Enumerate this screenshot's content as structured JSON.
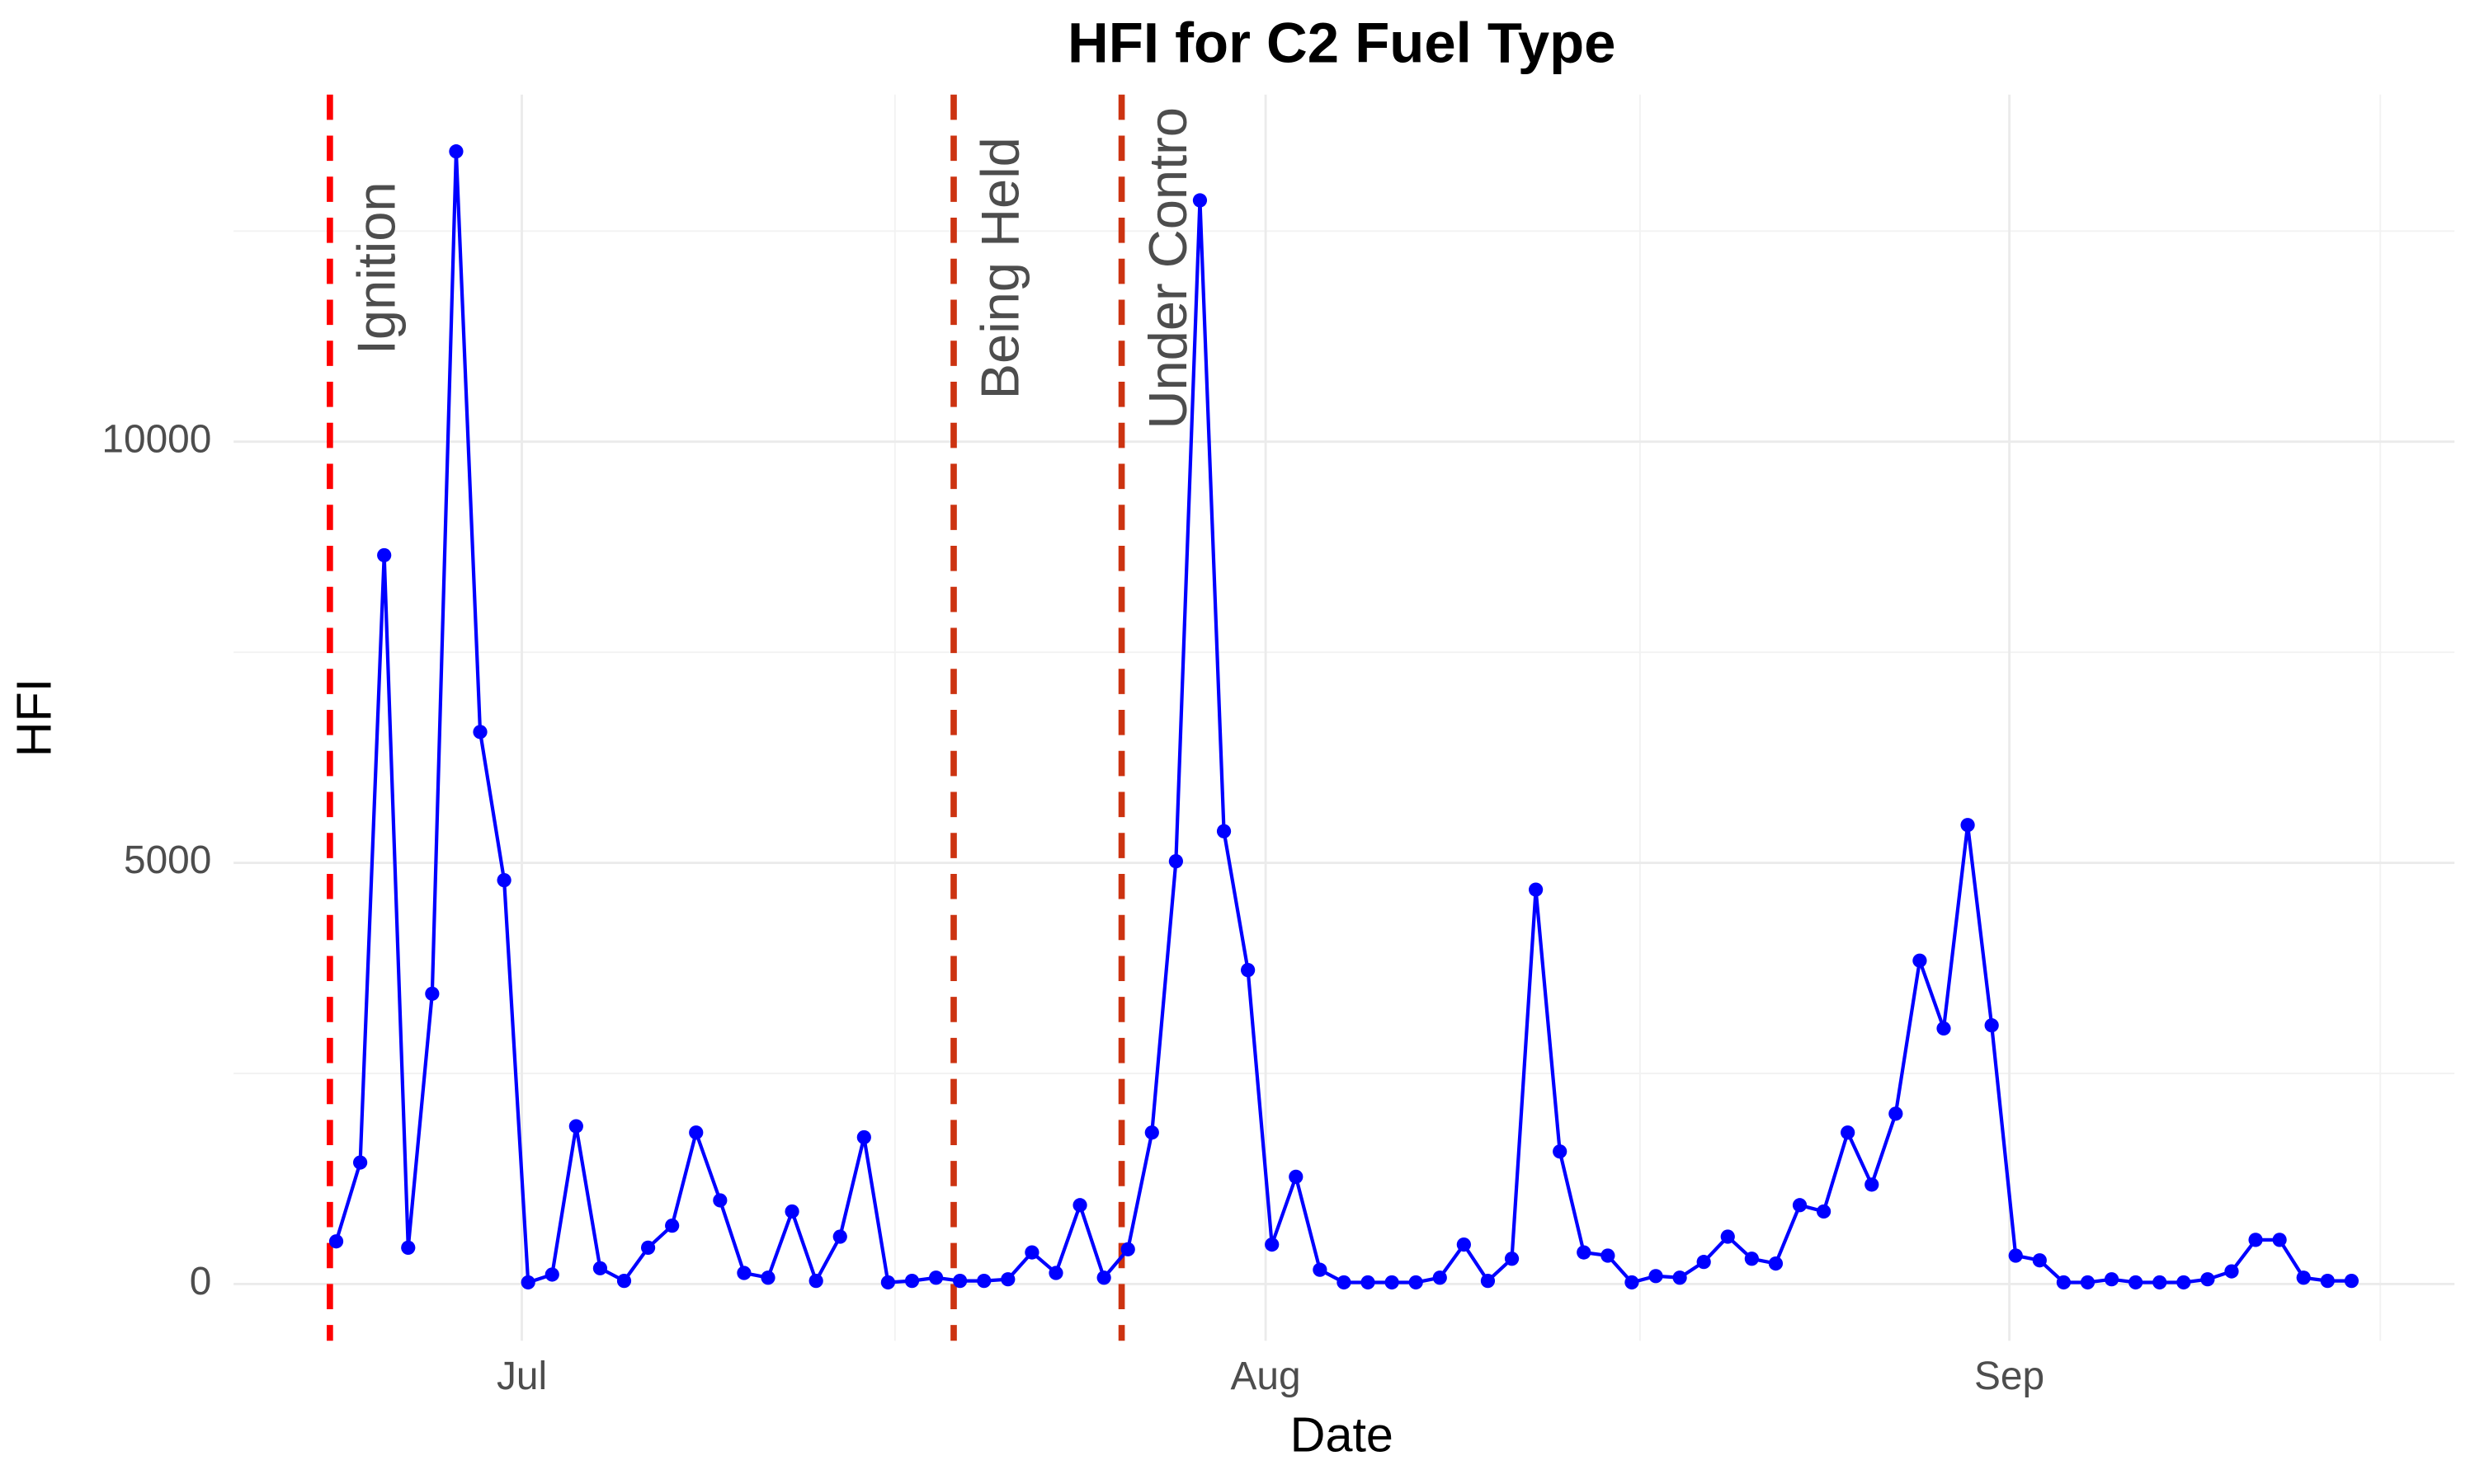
{
  "chart_data": {
    "type": "line",
    "title": "HFI for C2 Fuel Type",
    "x_label": "Date",
    "y_label": "HFI",
    "categories": [
      null,
      null,
      null,
      null,
      null,
      null,
      null,
      null,
      "Jul",
      null,
      null,
      null,
      null,
      null,
      null,
      null,
      null,
      null,
      null,
      null,
      null,
      null,
      null,
      null,
      null,
      null,
      null,
      null,
      null,
      null,
      null,
      null,
      null,
      null,
      null,
      null,
      null,
      null,
      null,
      "Aug",
      null,
      null,
      null,
      null,
      null,
      null,
      null,
      null,
      null,
      null,
      null,
      null,
      null,
      null,
      null,
      null,
      null,
      null,
      null,
      null,
      null,
      null,
      null,
      null,
      null,
      null,
      null,
      null,
      null,
      null,
      "Sep",
      null,
      null,
      null,
      null,
      null,
      null,
      null,
      null,
      null,
      null,
      null,
      null,
      null,
      null
    ],
    "series": [
      {
        "name": "HFI",
        "color": "#0000ff",
        "values": [
          506,
          1442,
          8652,
          431,
          3446,
          13446,
          6554,
          4794,
          19,
          112,
          1873,
          187,
          37,
          431,
          693,
          1798,
          993,
          131,
          75,
          861,
          37,
          562,
          1742,
          19,
          37,
          75,
          37,
          37,
          56,
          375,
          131,
          936,
          75,
          412,
          1798,
          5019,
          12865,
          5375,
          3727,
          468,
          1273,
          169,
          19,
          19,
          19,
          19,
          75,
          468,
          37,
          300,
          4682,
          1573,
          375,
          337,
          19,
          94,
          75,
          262,
          562,
          300,
          243,
          936,
          861,
          1798,
          1180,
          2022,
          3839,
          3034,
          5449,
          3071,
          337,
          281,
          19,
          19,
          56,
          19,
          19,
          19,
          56,
          150,
          524,
          524,
          75,
          37,
          37
        ]
      }
    ],
    "events": [
      {
        "label": "Ignition",
        "category": 0,
        "color": "#ff0000"
      },
      {
        "label": "Being Held",
        "category": 26,
        "color": "#cc3311"
      },
      {
        "label": "Under Contro",
        "category": 33,
        "color": "#cc3311"
      }
    ],
    "ylim": [
      -674,
      14120
    ],
    "yticks": [
      0,
      5000,
      10000
    ],
    "grid": true
  }
}
